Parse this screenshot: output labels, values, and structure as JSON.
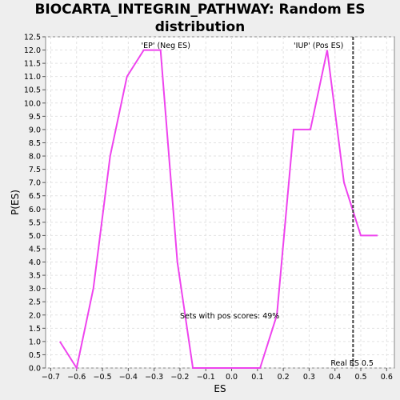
{
  "chart_data": {
    "type": "line",
    "title_line1": "BIOCARTA_INTEGRIN_PATHWAY: Random ES",
    "title_line2": "distribution",
    "xlabel": "ES",
    "ylabel": "P(ES)",
    "xlim": [
      -0.72,
      0.63
    ],
    "ylim": [
      0,
      12.5
    ],
    "x_ticks": [
      -0.7,
      -0.6,
      -0.5,
      -0.4,
      -0.3,
      -0.2,
      -0.1,
      0.0,
      0.1,
      0.2,
      0.3,
      0.4,
      0.5,
      0.6
    ],
    "x_tick_labels": [
      "−0.7",
      "−0.6",
      "−0.5",
      "−0.4",
      "−0.3",
      "−0.2",
      "−0.1",
      "0.0",
      "0.1",
      "0.2",
      "0.3",
      "0.4",
      "0.5",
      "0.6"
    ],
    "y_ticks": [
      0.0,
      0.5,
      1.0,
      1.5,
      2.0,
      2.5,
      3.0,
      3.5,
      4.0,
      4.5,
      5.0,
      5.5,
      6.0,
      6.5,
      7.0,
      7.5,
      8.0,
      8.5,
      9.0,
      9.5,
      10.0,
      10.5,
      11.0,
      11.5,
      12.0,
      12.5
    ],
    "y_tick_labels": [
      "0.0",
      "0.5",
      "1.0",
      "1.5",
      "2.0",
      "2.5",
      "3.0",
      "3.5",
      "4.0",
      "4.5",
      "5.0",
      "5.5",
      "6.0",
      "6.5",
      "7.0",
      "7.5",
      "8.0",
      "8.5",
      "9.0",
      "9.5",
      "10.0",
      "10.5",
      "11.0",
      "11.5",
      "12.0",
      "12.5"
    ],
    "grid": true,
    "series": [
      {
        "color": "#ee44ee",
        "points": [
          [
            -0.665,
            1.0
          ],
          [
            -0.6,
            0.0
          ],
          [
            -0.535,
            3.0
          ],
          [
            -0.47,
            8.0
          ],
          [
            -0.405,
            11.0
          ],
          [
            -0.34,
            12.0
          ],
          [
            -0.275,
            12.0
          ],
          [
            -0.21,
            4.0
          ],
          [
            -0.15,
            0.0
          ],
          [
            -0.085,
            0.0
          ],
          [
            -0.02,
            0.0
          ],
          [
            0.045,
            0.0
          ],
          [
            0.11,
            0.0
          ],
          [
            0.175,
            2.0
          ],
          [
            0.24,
            9.0
          ],
          [
            0.305,
            9.0
          ],
          [
            0.37,
            12.0
          ],
          [
            0.435,
            7.0
          ],
          [
            0.5,
            5.0
          ],
          [
            0.565,
            5.0
          ]
        ]
      }
    ],
    "marker_line": {
      "x": 0.47,
      "color": "#444444",
      "label": "Real ES 0.5"
    },
    "annotations": {
      "neg": {
        "text": "'EP' (Neg ES)",
        "color": "#4444cc",
        "x": -0.35
      },
      "pos": {
        "text": "'IUP' (Pos ES)",
        "color": "#cc4444",
        "x": 0.24
      },
      "pos_scores": {
        "text": "Sets with pos scores: 49%",
        "x": -0.2,
        "y": 2.0
      }
    }
  }
}
